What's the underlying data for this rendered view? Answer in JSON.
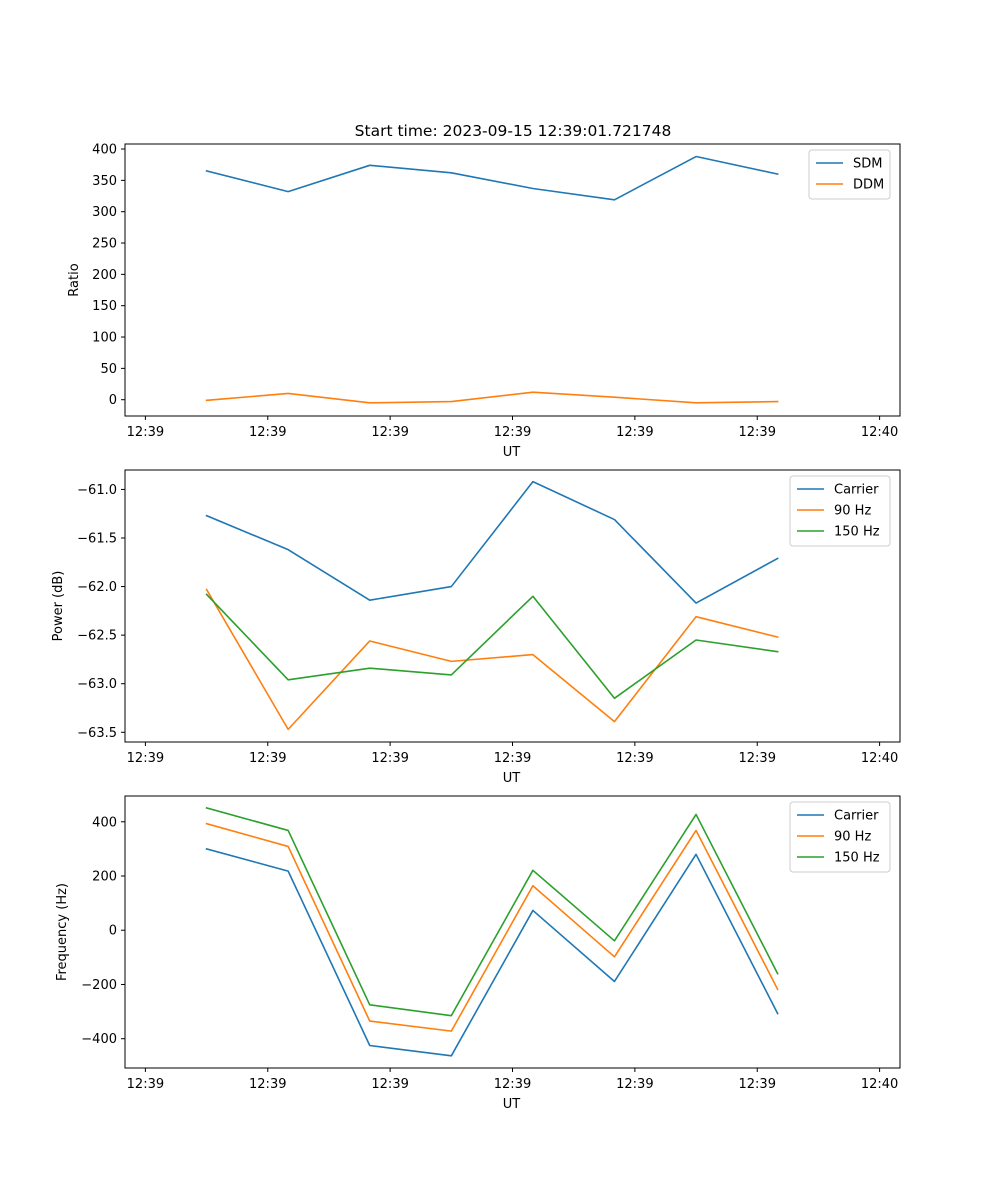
{
  "title": "Start time: 2023-09-15 12:39:01.721748",
  "chart_data": [
    {
      "type": "line",
      "xlabel": "UT",
      "ylabel": "Ratio",
      "x_tick_labels": [
        "12:39",
        "12:39",
        "12:39",
        "12:39",
        "12:39",
        "12:39",
        "12:40"
      ],
      "x": [
        1.5,
        3.5,
        5.5,
        7.5,
        9.5,
        11.5,
        13.5,
        15.5
      ],
      "xlim": [
        -0.5,
        18.5
      ],
      "y_ticks": [
        0,
        50,
        100,
        150,
        200,
        250,
        300,
        350,
        400
      ],
      "ylim": [
        -26,
        408
      ],
      "legend_loc": "top-right",
      "series": [
        {
          "name": "SDM",
          "color": "#1f77b4",
          "values": [
            365,
            332,
            374,
            362,
            337,
            319,
            388,
            360
          ]
        },
        {
          "name": "DDM",
          "color": "#ff7f0e",
          "values": [
            -1,
            10,
            -5,
            -3,
            12,
            4,
            -5,
            -3
          ]
        }
      ]
    },
    {
      "type": "line",
      "xlabel": "UT",
      "ylabel": "Power (dB)",
      "x_tick_labels": [
        "12:39",
        "12:39",
        "12:39",
        "12:39",
        "12:39",
        "12:39",
        "12:40"
      ],
      "x": [
        1.5,
        3.5,
        5.5,
        7.5,
        9.5,
        11.5,
        13.5,
        15.5
      ],
      "xlim": [
        -0.5,
        18.5
      ],
      "y_ticks": [
        -63.5,
        -63.0,
        -62.5,
        -62.0,
        -61.5,
        -61.0
      ],
      "y_tick_labels": [
        "−63.5",
        "−63.0",
        "−62.5",
        "−62.0",
        "−61.5",
        "−61.0"
      ],
      "ylim": [
        -63.6,
        -60.8
      ],
      "legend_loc": "top-right",
      "series": [
        {
          "name": "Carrier",
          "color": "#1f77b4",
          "values": [
            -61.27,
            -61.62,
            -62.14,
            -62.0,
            -60.92,
            -61.31,
            -62.17,
            -61.71
          ]
        },
        {
          "name": "90 Hz",
          "color": "#ff7f0e",
          "values": [
            -62.03,
            -63.47,
            -62.56,
            -62.77,
            -62.7,
            -63.39,
            -62.31,
            -62.52
          ]
        },
        {
          "name": "150 Hz",
          "color": "#2ca02c",
          "values": [
            -62.08,
            -62.96,
            -62.84,
            -62.91,
            -62.1,
            -63.15,
            -62.55,
            -62.67
          ]
        }
      ]
    },
    {
      "type": "line",
      "xlabel": "UT",
      "ylabel": "Frequency (Hz)",
      "x_tick_labels": [
        "12:39",
        "12:39",
        "12:39",
        "12:39",
        "12:39",
        "12:39",
        "12:40"
      ],
      "x": [
        1.5,
        3.5,
        5.5,
        7.5,
        9.5,
        11.5,
        13.5,
        15.5
      ],
      "xlim": [
        -0.5,
        18.5
      ],
      "y_ticks": [
        -400,
        -200,
        0,
        200,
        400
      ],
      "y_tick_labels": [
        "−400",
        "−200",
        "0",
        "200",
        "400"
      ],
      "ylim": [
        -508,
        495
      ],
      "legend_loc": "top-right",
      "series": [
        {
          "name": "Carrier",
          "color": "#1f77b4",
          "values": [
            300,
            218,
            -425,
            -463,
            73,
            -189,
            280,
            -307
          ]
        },
        {
          "name": "90 Hz",
          "color": "#ff7f0e",
          "values": [
            393,
            309,
            -335,
            -372,
            164,
            -98,
            368,
            -218
          ]
        },
        {
          "name": "150 Hz",
          "color": "#2ca02c",
          "values": [
            451,
            368,
            -275,
            -315,
            221,
            -39,
            427,
            -160
          ]
        }
      ]
    }
  ]
}
